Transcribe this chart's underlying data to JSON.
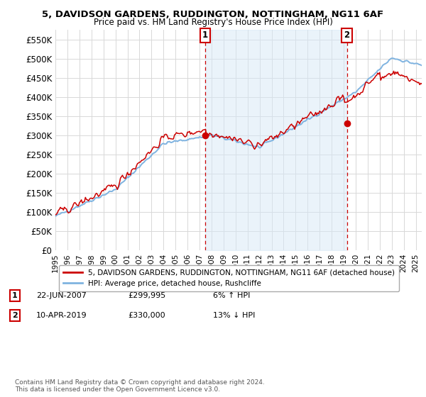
{
  "title": "5, DAVIDSON GARDENS, RUDDINGTON, NOTTINGHAM, NG11 6AF",
  "subtitle": "Price paid vs. HM Land Registry's House Price Index (HPI)",
  "hpi_color": "#7fb3e0",
  "hpi_fill_color": "#d6e8f7",
  "price_color": "#cc0000",
  "background_color": "#ffffff",
  "grid_color": "#d8d8d8",
  "ylim": [
    0,
    575000
  ],
  "yticks": [
    0,
    50000,
    100000,
    150000,
    200000,
    250000,
    300000,
    350000,
    400000,
    450000,
    500000,
    550000
  ],
  "ytick_labels": [
    "£0",
    "£50K",
    "£100K",
    "£150K",
    "£200K",
    "£250K",
    "£300K",
    "£350K",
    "£400K",
    "£450K",
    "£500K",
    "£550K"
  ],
  "sale1_date_x": 2007.47,
  "sale1_price": 299995,
  "sale1_label": "1",
  "sale2_date_x": 2019.27,
  "sale2_price": 330000,
  "sale2_label": "2",
  "legend_line1": "5, DAVIDSON GARDENS, RUDDINGTON, NOTTINGHAM, NG11 6AF (detached house)",
  "legend_line2": "HPI: Average price, detached house, Rushcliffe",
  "footer": "Contains HM Land Registry data © Crown copyright and database right 2024.\nThis data is licensed under the Open Government Licence v3.0.",
  "xmin": 1995.0,
  "xmax": 2025.5
}
